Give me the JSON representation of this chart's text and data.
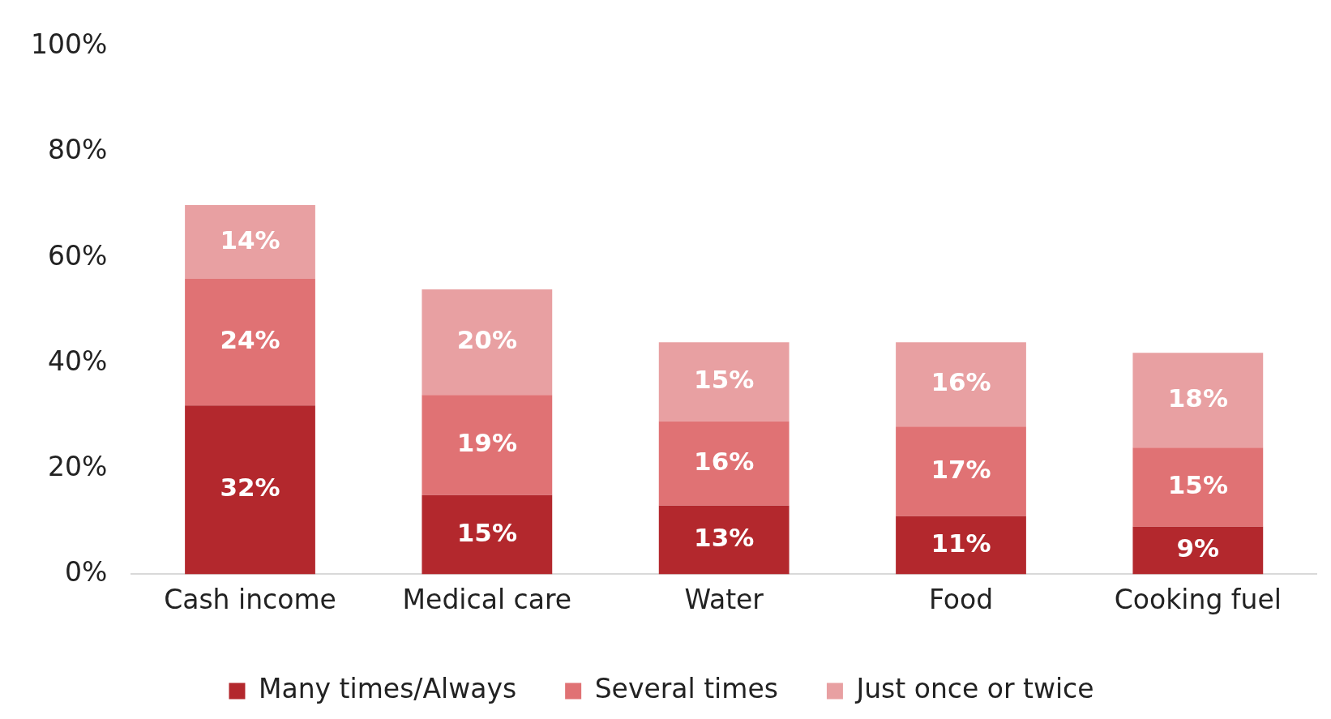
{
  "chart_data": {
    "type": "bar",
    "stacked": true,
    "categories": [
      "Cash income",
      "Medical care",
      "Water",
      "Food",
      "Cooking fuel"
    ],
    "series": [
      {
        "name": "Many times/Always",
        "color": "#b3282d",
        "values": [
          32,
          15,
          13,
          11,
          9
        ],
        "value_labels": [
          "32%",
          "15%",
          "13%",
          "11%",
          "9%"
        ]
      },
      {
        "name": "Several times",
        "color": "#e07274",
        "values": [
          24,
          19,
          16,
          17,
          15
        ],
        "value_labels": [
          "24%",
          "19%",
          "16%",
          "17%",
          "15%"
        ]
      },
      {
        "name": "Just once or twice",
        "color": "#e8a0a2",
        "values": [
          14,
          20,
          15,
          16,
          18
        ],
        "value_labels": [
          "14%",
          "20%",
          "15%",
          "16%",
          "18%"
        ]
      }
    ],
    "ylim": [
      0,
      100
    ],
    "yticks": [
      {
        "value": 0,
        "label": "0%"
      },
      {
        "value": 20,
        "label": "20%"
      },
      {
        "value": 40,
        "label": "40%"
      },
      {
        "value": 60,
        "label": "60%"
      },
      {
        "value": 80,
        "label": "80%"
      },
      {
        "value": 100,
        "label": "100%"
      }
    ],
    "grid": false,
    "legend": "bottom"
  }
}
